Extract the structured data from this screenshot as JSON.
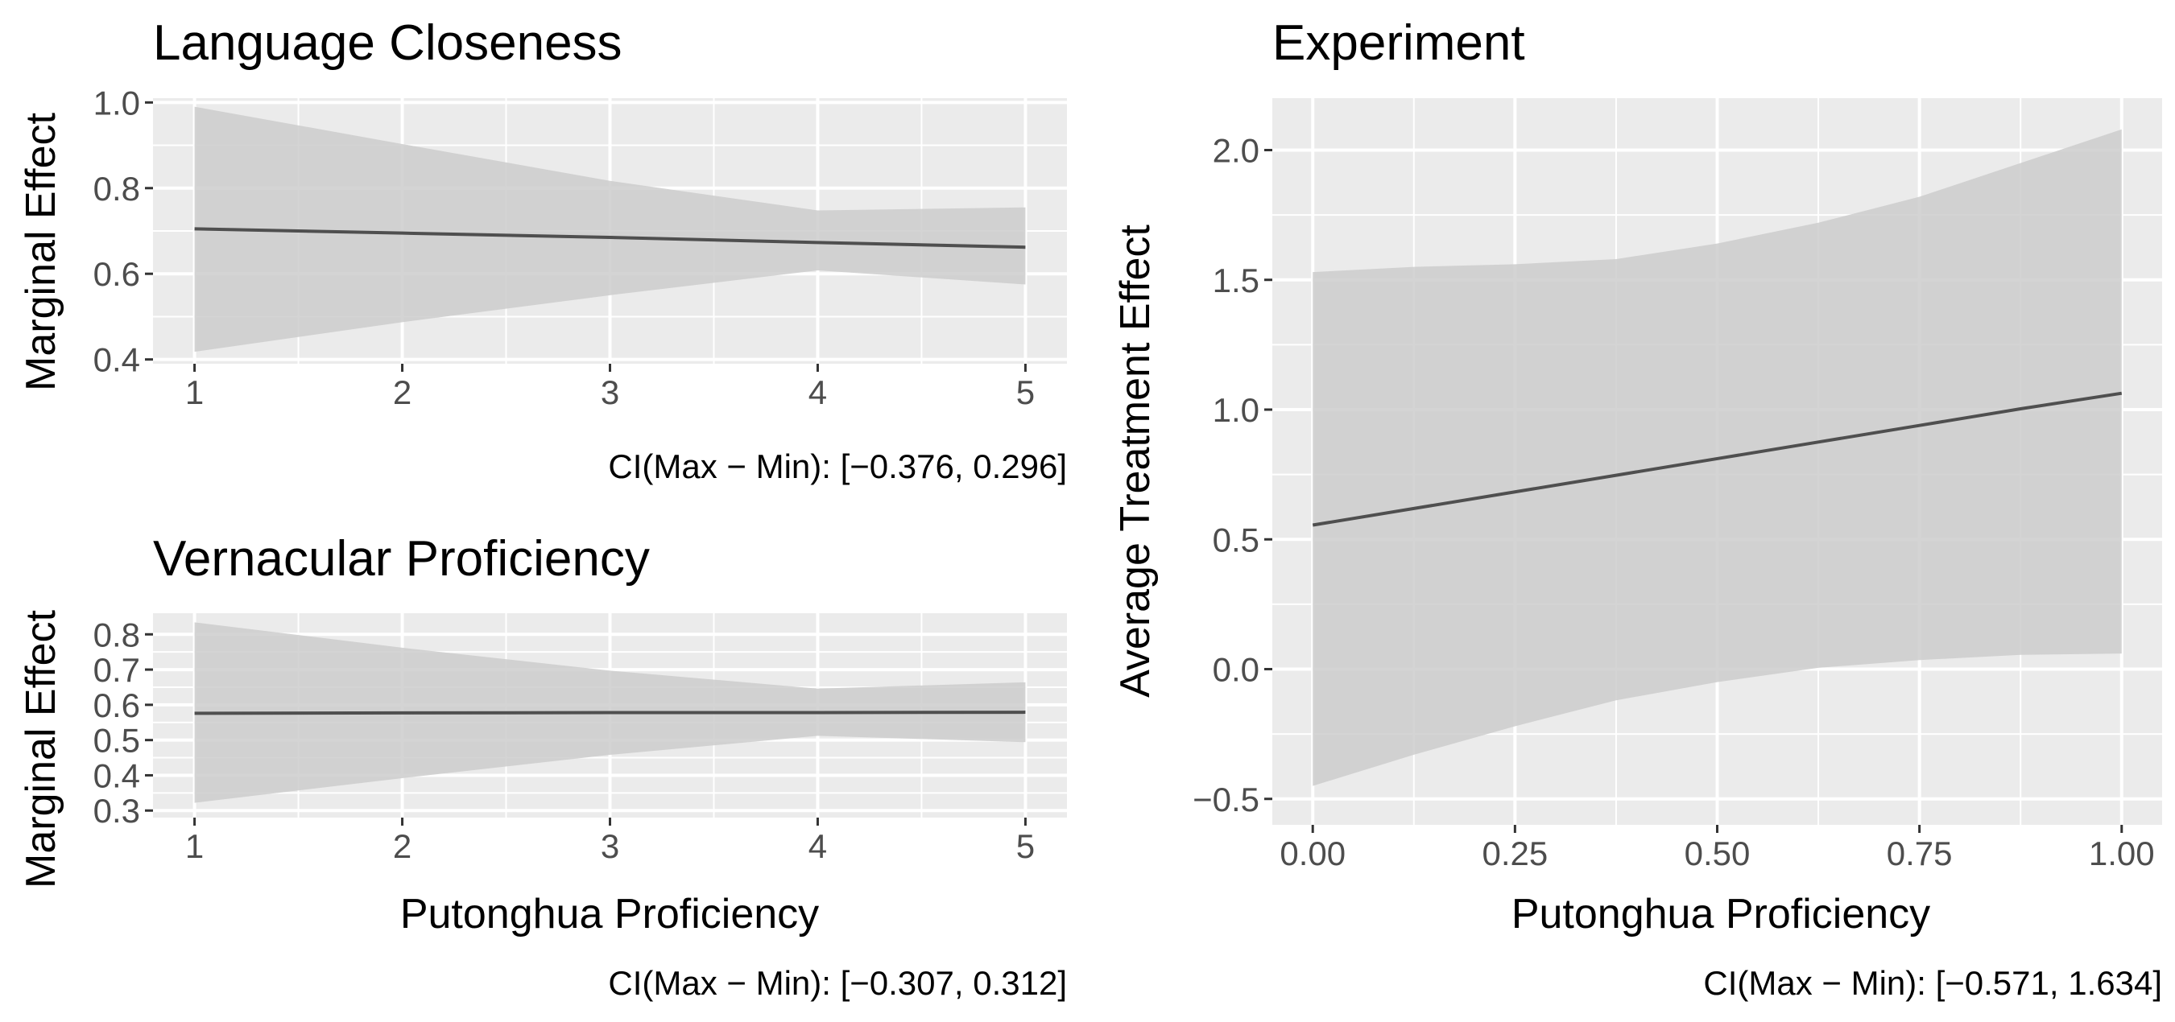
{
  "chart_data": [
    {
      "id": "lc",
      "type": "line",
      "title": "Language Closeness",
      "xlabel": "",
      "ylabel": "Marginal Effect",
      "caption": "CI(Max − Min): [−0.376, 0.296]",
      "x": [
        1,
        2,
        3,
        4,
        5
      ],
      "xlim": [
        0.8,
        5.2
      ],
      "ylim": [
        0.39,
        1.01
      ],
      "xticks": [
        1,
        2,
        3,
        4,
        5
      ],
      "xtick_labels": [
        "1",
        "2",
        "3",
        "4",
        "5"
      ],
      "yticks": [
        0.4,
        0.6,
        0.8,
        1.0
      ],
      "ytick_labels": [
        "0.4",
        "0.6",
        "0.8",
        "1.0"
      ],
      "grid": true,
      "series": [
        {
          "values": [
            0.705,
            0.695,
            0.685,
            0.673,
            0.662
          ],
          "lower": [
            0.418,
            0.487,
            0.55,
            0.608,
            0.575
          ],
          "upper": [
            0.99,
            0.903,
            0.817,
            0.748,
            0.755
          ]
        }
      ]
    },
    {
      "id": "vp",
      "type": "line",
      "title": "Vernacular Proficiency",
      "xlabel": "Putonghua Proficiency",
      "ylabel": "Marginal Effect",
      "caption": "CI(Max − Min): [−0.307, 0.312]",
      "x": [
        1,
        2,
        3,
        4,
        5
      ],
      "xlim": [
        0.8,
        5.2
      ],
      "ylim": [
        0.28,
        0.86
      ],
      "xticks": [
        1,
        2,
        3,
        4,
        5
      ],
      "xtick_labels": [
        "1",
        "2",
        "3",
        "4",
        "5"
      ],
      "yticks": [
        0.3,
        0.4,
        0.5,
        0.6,
        0.7,
        0.8
      ],
      "ytick_labels": [
        "0.3",
        "0.4",
        "0.5",
        "0.6",
        "0.7",
        "0.8"
      ],
      "grid": true,
      "series": [
        {
          "values": [
            0.576,
            0.577,
            0.578,
            0.578,
            0.579
          ],
          "lower": [
            0.322,
            0.392,
            0.458,
            0.512,
            0.494
          ],
          "upper": [
            0.834,
            0.762,
            0.697,
            0.646,
            0.664
          ]
        }
      ]
    },
    {
      "id": "ex",
      "type": "line",
      "title": "Experiment",
      "xlabel": "Putonghua Proficiency",
      "ylabel": "Average Treatment Effect",
      "caption": "CI(Max − Min): [−0.571, 1.634]",
      "x": [
        0.0,
        0.125,
        0.25,
        0.375,
        0.5,
        0.625,
        0.75,
        0.875,
        1.0
      ],
      "xlim": [
        -0.05,
        1.05
      ],
      "ylim": [
        -0.6,
        2.2
      ],
      "xticks": [
        0.0,
        0.25,
        0.5,
        0.75,
        1.0
      ],
      "xtick_labels": [
        "0.00",
        "0.25",
        "0.50",
        "0.75",
        "1.00"
      ],
      "yticks": [
        -0.5,
        0.0,
        0.5,
        1.0,
        1.5,
        2.0
      ],
      "ytick_labels": [
        "−0.5",
        "0.0",
        "0.5",
        "1.0",
        "1.5",
        "2.0"
      ],
      "grid": true,
      "series": [
        {
          "values": [
            0.555,
            0.619,
            0.683,
            0.747,
            0.811,
            0.875,
            0.939,
            1.003,
            1.063
          ],
          "lower": [
            -0.45,
            -0.33,
            -0.22,
            -0.12,
            -0.05,
            0.005,
            0.035,
            0.055,
            0.06
          ],
          "upper": [
            1.53,
            1.55,
            1.56,
            1.58,
            1.64,
            1.72,
            1.82,
            1.95,
            2.08
          ]
        }
      ]
    }
  ],
  "colors": {
    "panel_background": "#ebebeb",
    "grid_line": "#ffffff",
    "ribbon": "#cccccc",
    "line": "#4f4f4f",
    "tick": "#333333"
  }
}
